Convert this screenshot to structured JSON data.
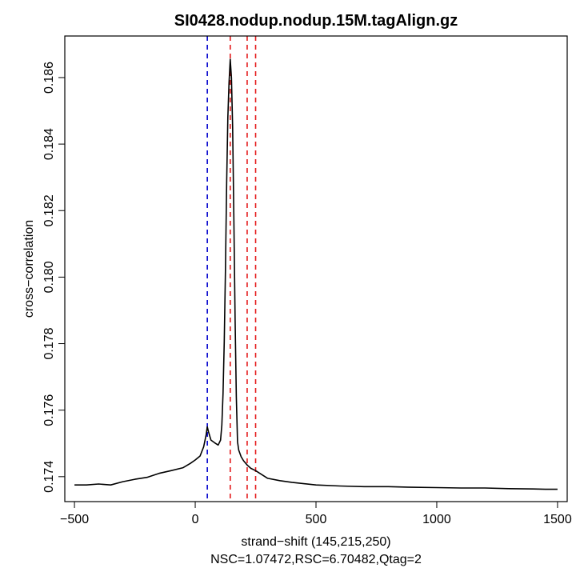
{
  "chart_data": {
    "type": "line",
    "title": "SI0428.nodup.nodup.15M.tagAlign.gz",
    "xlabel": "strand−shift (145,215,250)",
    "subtitle": "NSC=1.07472,RSC=6.70482,Qtag=2",
    "ylabel": "cross−correlation",
    "xlim": [
      -540,
      1540
    ],
    "ylim": [
      0.17325,
      0.18725
    ],
    "x_ticks": [
      -500,
      0,
      500,
      1000,
      1500
    ],
    "x_tick_labels": [
      "−500",
      "0",
      "500",
      "1000",
      "1500"
    ],
    "y_ticks": [
      0.174,
      0.176,
      0.178,
      0.18,
      0.182,
      0.184,
      0.186
    ],
    "y_tick_labels": [
      "0.174",
      "0.176",
      "0.178",
      "0.180",
      "0.182",
      "0.184",
      "0.186"
    ],
    "grid": false,
    "line_color": "#000000",
    "vertical_lines": [
      {
        "x": 50,
        "color": "#0000cc",
        "style": "dashed"
      },
      {
        "x": 145,
        "color": "#e41a1c",
        "style": "dashed"
      },
      {
        "x": 215,
        "color": "#e41a1c",
        "style": "dashed"
      },
      {
        "x": 250,
        "color": "#e41a1c",
        "style": "dashed"
      }
    ],
    "series": [
      {
        "x": [
          -500,
          -450,
          -400,
          -350,
          -300,
          -250,
          -200,
          -150,
          -100,
          -50,
          -20,
          0,
          20,
          35,
          45,
          50,
          55,
          65,
          80,
          95,
          105,
          110,
          115,
          120,
          125,
          130,
          135,
          140,
          145,
          150,
          155,
          160,
          165,
          170,
          175,
          180,
          190,
          200,
          215,
          230,
          250,
          300,
          350,
          400,
          500,
          600,
          700,
          800,
          900,
          1000,
          1100,
          1200,
          1300,
          1400,
          1450,
          1500
        ],
        "y": [
          0.17375,
          0.17375,
          0.17378,
          0.17375,
          0.17385,
          0.17392,
          0.17398,
          0.1741,
          0.17418,
          0.17427,
          0.1744,
          0.1745,
          0.17462,
          0.1749,
          0.17525,
          0.1755,
          0.17535,
          0.1751,
          0.17502,
          0.17495,
          0.1751,
          0.17555,
          0.1765,
          0.17805,
          0.1802,
          0.1828,
          0.1848,
          0.18585,
          0.18655,
          0.186,
          0.1845,
          0.1818,
          0.1787,
          0.1764,
          0.17505,
          0.1748,
          0.1746,
          0.17448,
          0.17435,
          0.17425,
          0.17418,
          0.17395,
          0.17388,
          0.17383,
          0.17375,
          0.17372,
          0.1737,
          0.1737,
          0.17368,
          0.17367,
          0.17366,
          0.17366,
          0.17364,
          0.17363,
          0.17362,
          0.17362
        ]
      }
    ]
  }
}
